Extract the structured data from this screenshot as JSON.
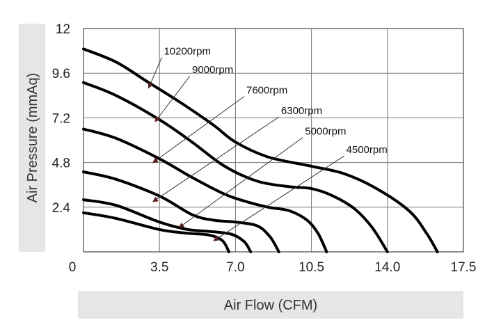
{
  "chart_data": {
    "type": "line",
    "xlabel": "Air Flow (CFM)",
    "ylabel": "Air Pressure (mmAq)",
    "xlim": [
      0,
      17.5
    ],
    "ylim": [
      0,
      12
    ],
    "x_ticks": [
      "0",
      "3.5",
      "7.0",
      "10.5",
      "14.0",
      "17.5"
    ],
    "y_ticks": [
      "2.4",
      "4.8",
      "7.2",
      "9.6",
      "12"
    ],
    "grid": true,
    "series": [
      {
        "name": "10200rpm",
        "points": [
          [
            0,
            10.9
          ],
          [
            1.5,
            10.2
          ],
          [
            3.0,
            9.1
          ],
          [
            4.5,
            8.0
          ],
          [
            6.0,
            6.8
          ],
          [
            7.0,
            5.9
          ],
          [
            8.5,
            5.1
          ],
          [
            10.5,
            4.6
          ],
          [
            12.0,
            4.2
          ],
          [
            13.5,
            3.4
          ],
          [
            15.0,
            2.2
          ],
          [
            15.8,
            1.0
          ],
          [
            16.3,
            0.0
          ]
        ]
      },
      {
        "name": "9000rpm",
        "points": [
          [
            0,
            9.1
          ],
          [
            1.5,
            8.4
          ],
          [
            3.5,
            7.1
          ],
          [
            5.0,
            5.9
          ],
          [
            6.5,
            4.6
          ],
          [
            8.0,
            3.8
          ],
          [
            9.5,
            3.5
          ],
          [
            10.5,
            3.4
          ],
          [
            11.5,
            3.0
          ],
          [
            12.5,
            2.3
          ],
          [
            13.3,
            1.3
          ],
          [
            14.0,
            0.0
          ]
        ]
      },
      {
        "name": "7600rpm",
        "points": [
          [
            0,
            6.6
          ],
          [
            1.5,
            6.1
          ],
          [
            3.5,
            5.0
          ],
          [
            5.0,
            4.0
          ],
          [
            6.5,
            3.1
          ],
          [
            7.5,
            2.7
          ],
          [
            8.5,
            2.4
          ],
          [
            9.5,
            2.2
          ],
          [
            10.3,
            1.7
          ],
          [
            10.8,
            1.0
          ],
          [
            11.2,
            0.0
          ]
        ]
      },
      {
        "name": "6300rpm",
        "points": [
          [
            0,
            4.3
          ],
          [
            1.5,
            3.9
          ],
          [
            3.5,
            3.0
          ],
          [
            5.0,
            2.0
          ],
          [
            6.0,
            1.7
          ],
          [
            7.0,
            1.6
          ],
          [
            8.0,
            1.4
          ],
          [
            8.6,
            0.8
          ],
          [
            9.0,
            0.0
          ]
        ]
      },
      {
        "name": "5000rpm",
        "points": [
          [
            0,
            2.8
          ],
          [
            1.5,
            2.5
          ],
          [
            3.5,
            1.6
          ],
          [
            4.8,
            1.2
          ],
          [
            5.8,
            1.1
          ],
          [
            6.8,
            0.95
          ],
          [
            7.4,
            0.55
          ],
          [
            7.7,
            0.0
          ]
        ]
      },
      {
        "name": "4500rpm",
        "points": [
          [
            0,
            2.1
          ],
          [
            1.5,
            1.8
          ],
          [
            3.5,
            1.2
          ],
          [
            4.8,
            1.0
          ],
          [
            5.8,
            0.9
          ],
          [
            6.4,
            0.6
          ],
          [
            6.7,
            0.0
          ]
        ]
      }
    ],
    "annotations": [
      {
        "text": "10200rpm",
        "label_x": 3.7,
        "label_y": 10.6,
        "arrow_x": 3.0,
        "arrow_y": 8.8
      },
      {
        "text": "9000rpm",
        "label_x": 5.0,
        "label_y": 9.6,
        "arrow_x": 3.3,
        "arrow_y": 7.0
      },
      {
        "text": "7600rpm",
        "label_x": 7.5,
        "label_y": 8.5,
        "arrow_x": 3.2,
        "arrow_y": 4.8
      },
      {
        "text": "6300rpm",
        "label_x": 9.1,
        "label_y": 7.4,
        "arrow_x": 3.2,
        "arrow_y": 2.7
      },
      {
        "text": "5000rpm",
        "label_x": 10.2,
        "label_y": 6.3,
        "arrow_x": 4.4,
        "arrow_y": 1.3
      },
      {
        "text": "4500rpm",
        "label_x": 12.1,
        "label_y": 5.3,
        "arrow_x": 6.0,
        "arrow_y": 0.6
      }
    ]
  },
  "style": {
    "curve_color": "#000000",
    "grid_color": "#777777",
    "axis_band_color": "#e6e6e6",
    "arrow_color": "#5a1f1f"
  }
}
